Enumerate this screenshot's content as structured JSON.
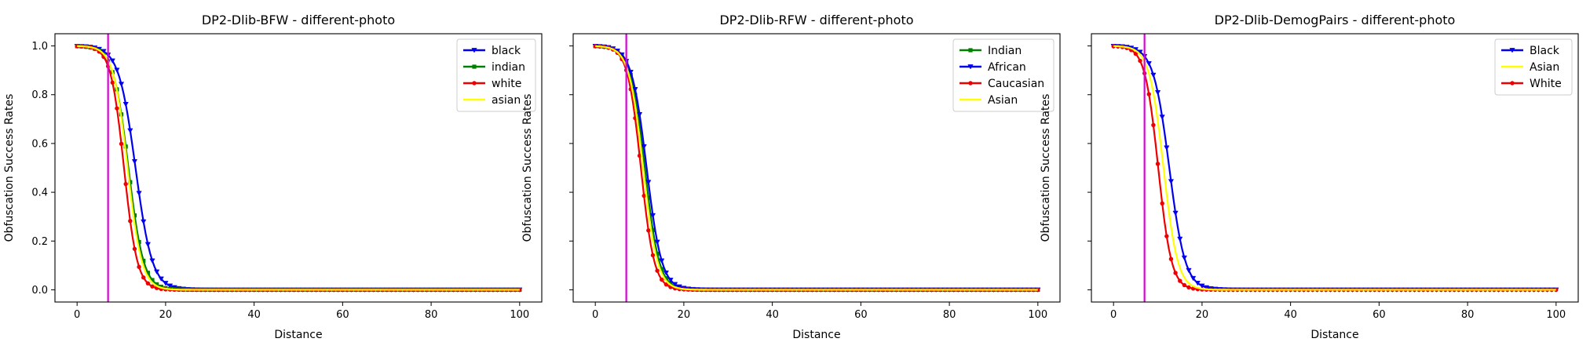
{
  "figure": {
    "vline_color": "#dd00dd",
    "vline_x": 7
  },
  "chart_data": [
    {
      "type": "line",
      "title": "DP2-Dlib-BFW - different-photo",
      "xlabel": "Distance",
      "ylabel": "Obfuscation Success Rates",
      "xlim": [
        -5,
        105
      ],
      "ylim": [
        -0.05,
        1.05
      ],
      "xticks": [
        0,
        20,
        40,
        60,
        80,
        100
      ],
      "yticks": [
        0.0,
        0.2,
        0.4,
        0.6,
        0.8,
        1.0
      ],
      "show_y_tick_labels": true,
      "grid": false,
      "legend_position": "top-right",
      "series": [
        {
          "name": "black",
          "color": "#0000ee",
          "marker": "triangle-down",
          "midpoint": 13.2,
          "width": 1.9
        },
        {
          "name": "indian",
          "color": "#008000",
          "marker": "square",
          "midpoint": 11.6,
          "width": 1.7
        },
        {
          "name": "white",
          "color": "#ee0000",
          "marker": "circle",
          "midpoint": 10.6,
          "width": 1.5
        },
        {
          "name": "asian",
          "color": "#ffff00",
          "marker": "none",
          "midpoint": 11.4,
          "width": 1.6
        }
      ]
    },
    {
      "type": "line",
      "title": "DP2-Dlib-RFW - different-photo",
      "xlabel": "Distance",
      "ylabel": "Obfuscation Success Rates",
      "xlim": [
        -5,
        105
      ],
      "ylim": [
        -0.05,
        1.05
      ],
      "xticks": [
        0,
        20,
        40,
        60,
        80,
        100
      ],
      "yticks": [
        0.0,
        0.2,
        0.4,
        0.6,
        0.8,
        1.0
      ],
      "show_y_tick_labels": false,
      "grid": false,
      "legend_position": "top-right",
      "series": [
        {
          "name": "Indian",
          "color": "#008000",
          "marker": "square",
          "midpoint": 11.2,
          "width": 1.6
        },
        {
          "name": "African",
          "color": "#0000ee",
          "marker": "triangle-down",
          "midpoint": 11.6,
          "width": 1.7
        },
        {
          "name": "Caucasian",
          "color": "#ee0000",
          "marker": "circle",
          "midpoint": 10.3,
          "width": 1.5
        },
        {
          "name": "Asian",
          "color": "#ffff00",
          "marker": "none",
          "midpoint": 10.8,
          "width": 1.6
        }
      ]
    },
    {
      "type": "line",
      "title": "DP2-Dlib-DemogPairs - different-photo",
      "xlabel": "Distance",
      "ylabel": "Obfuscation Success Rates",
      "xlim": [
        -5,
        105
      ],
      "ylim": [
        -0.05,
        1.05
      ],
      "xticks": [
        0,
        20,
        40,
        60,
        80,
        100
      ],
      "yticks": [
        0.0,
        0.2,
        0.4,
        0.6,
        0.8,
        1.0
      ],
      "show_y_tick_labels": false,
      "grid": false,
      "legend_position": "top-right",
      "series": [
        {
          "name": "Black",
          "color": "#0000ee",
          "marker": "triangle-down",
          "midpoint": 12.6,
          "width": 1.8
        },
        {
          "name": "Asian",
          "color": "#ffff00",
          "marker": "none",
          "midpoint": 11.3,
          "width": 1.6
        },
        {
          "name": "White",
          "color": "#ee0000",
          "marker": "circle",
          "midpoint": 10.1,
          "width": 1.5
        }
      ]
    }
  ]
}
